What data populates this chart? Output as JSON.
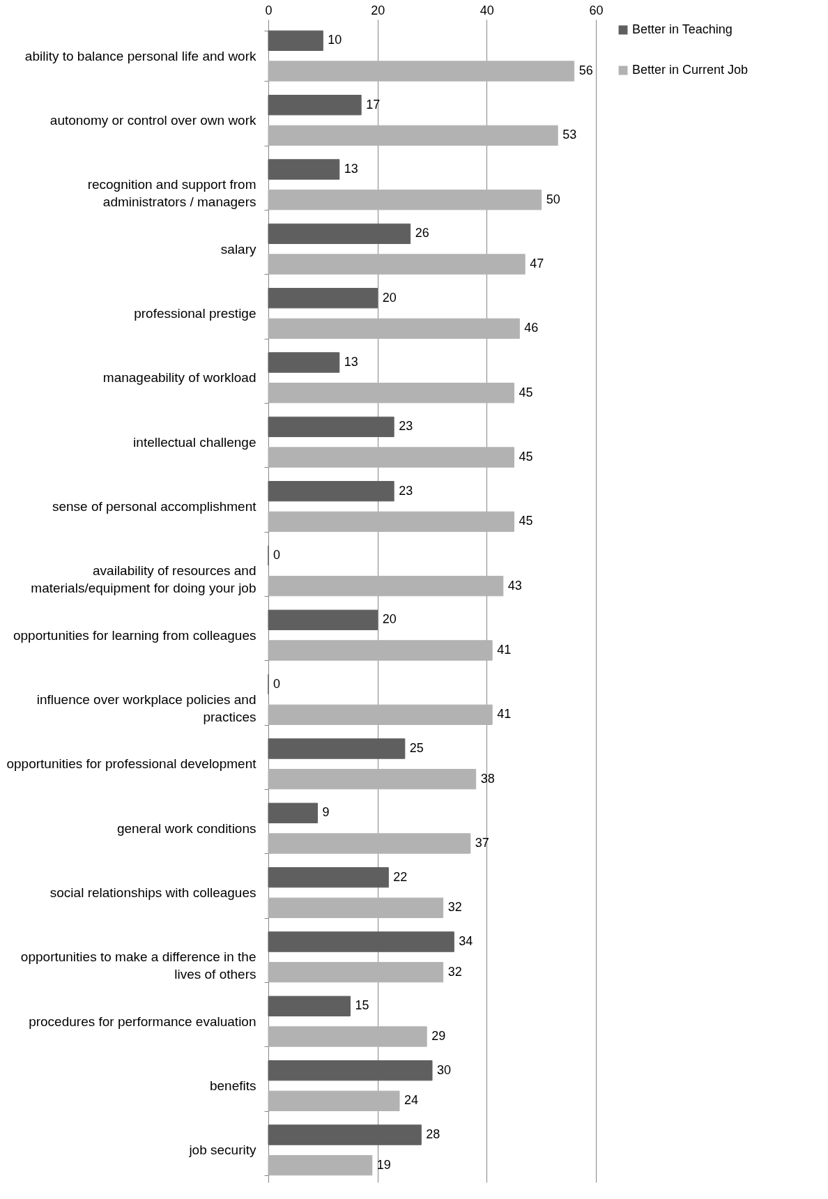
{
  "chart_data": {
    "type": "bar",
    "orientation": "horizontal",
    "categories": [
      "ability to balance personal life and work",
      "autonomy or control over own work",
      "recognition and support from administrators / managers",
      "salary",
      "professional prestige",
      "manageability of workload",
      "intellectual challenge",
      "sense of personal accomplishment",
      "availability of resources and materials/equipment for doing your job",
      "opportunities for learning from colleagues",
      "influence over workplace policies and practices",
      "opportunities for professional development",
      "general work conditions",
      "social relationships with colleagues",
      "opportunities to make a difference in the lives of others",
      "procedures for performance evaluation",
      "benefits",
      "job security"
    ],
    "series": [
      {
        "name": "Better in Teaching",
        "color": "#5f5f5f",
        "values": [
          10,
          17,
          13,
          26,
          20,
          13,
          23,
          23,
          0,
          20,
          0,
          25,
          9,
          22,
          34,
          15,
          30,
          28
        ]
      },
      {
        "name": "Better in Current Job",
        "color": "#b2b2b2",
        "values": [
          56,
          53,
          50,
          47,
          46,
          45,
          45,
          45,
          43,
          41,
          41,
          38,
          37,
          32,
          32,
          29,
          24,
          19
        ]
      }
    ],
    "xlim": [
      0,
      60
    ],
    "xticks": [
      0,
      20,
      40,
      60
    ],
    "grid": "x",
    "legend": "right",
    "data_labels": true
  }
}
